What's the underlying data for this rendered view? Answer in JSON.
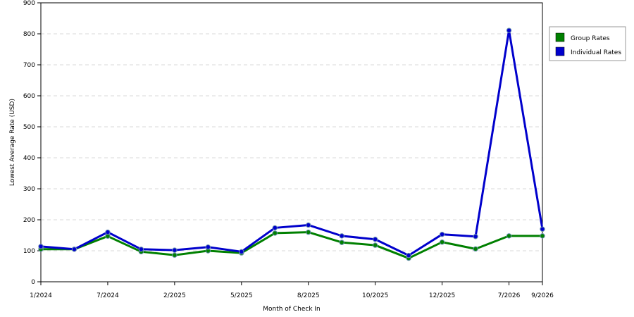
{
  "chart_data": {
    "type": "line",
    "title": "",
    "xlabel": "Month of Check In",
    "ylabel": "Lowest Average Rate (USD)",
    "ylim": [
      0,
      900
    ],
    "yticks": [
      0,
      100,
      200,
      300,
      400,
      500,
      600,
      700,
      800,
      900
    ],
    "grid": true,
    "legend_position": "right",
    "x_tick_labels": [
      "1/2024",
      "7/2024",
      "2/2025",
      "5/2025",
      "8/2025",
      "10/2025",
      "12/2025",
      "7/2026",
      "9/2026"
    ],
    "x_tick_indices": [
      0,
      2,
      4,
      6,
      8,
      10,
      12,
      14,
      15
    ],
    "num_points": 16,
    "series": [
      {
        "name": "Group Rates",
        "color": "#008000",
        "values": [
          105,
          105,
          147,
          97,
          86,
          100,
          93,
          157,
          160,
          127,
          118,
          76,
          128,
          106,
          148,
          148
        ]
      },
      {
        "name": "Individual Rates",
        "color": "#0000cc",
        "values": [
          114,
          105,
          160,
          105,
          102,
          112,
          97,
          174,
          183,
          148,
          137,
          85,
          153,
          146,
          811,
          170
        ]
      }
    ]
  }
}
